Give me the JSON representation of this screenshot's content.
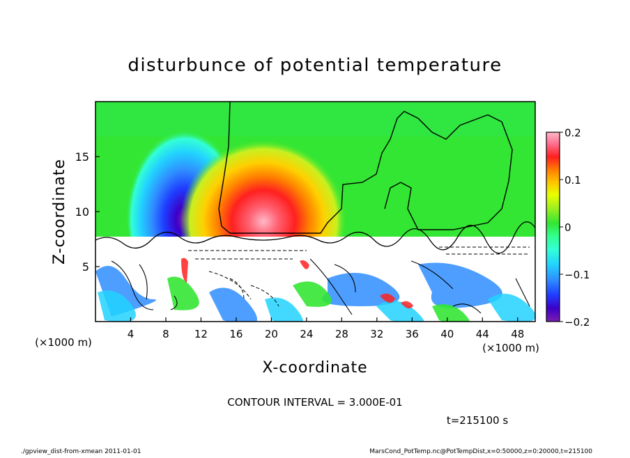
{
  "chart_data": {
    "type": "heatmap",
    "title": "disturbunce of potential temperature",
    "xlabel": "X-coordinate",
    "ylabel": "Z-coordinate",
    "x_unit_left": "(×1000 m)",
    "x_unit_right": "(×1000 m)",
    "xlim": [
      0,
      50
    ],
    "ylim": [
      0,
      20
    ],
    "x_ticks": [
      "4",
      "8",
      "12",
      "16",
      "20",
      "24",
      "28",
      "32",
      "36",
      "40",
      "44",
      "48"
    ],
    "y_ticks": [
      "5",
      "10",
      "15"
    ],
    "colorbar": {
      "range": [
        -0.2,
        0.2
      ],
      "tick_labels": [
        "0.2",
        "0.1",
        "0",
        "−0.1",
        "−0.2"
      ],
      "colors": [
        "#7a1fb0",
        "#3d00c8",
        "#1f3cff",
        "#2f8dff",
        "#22d2ff",
        "#33ffd6",
        "#33ff8f",
        "#33e633",
        "#a0f020",
        "#e8ff00",
        "#ffc000",
        "#ff8000",
        "#ff2020",
        "#ff7090",
        "#ffb8c8"
      ]
    },
    "features": [
      {
        "name": "cold anomaly",
        "x": 10.5,
        "z": 10,
        "value": -0.2
      },
      {
        "name": "warm anomaly",
        "x": 19.5,
        "z": 9.5,
        "value": 0.2
      }
    ],
    "contour_interval_text": "CONTOUR INTERVAL = 3.000E-01",
    "time_text": "t=215100 s"
  },
  "footer": {
    "left": "./gpview_dist-from-xmean  2011-01-01",
    "right": "MarsCond_PotTemp.nc@PotTempDist,x=0:50000,z=0:20000,t=215100"
  }
}
